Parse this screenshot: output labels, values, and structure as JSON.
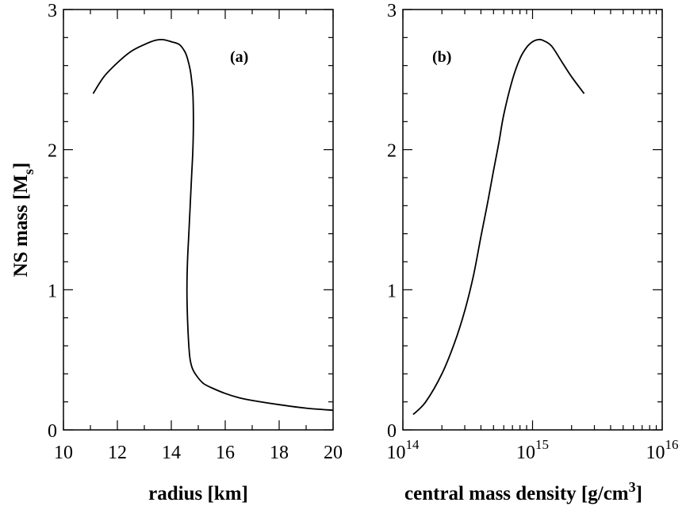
{
  "chart_data": [
    {
      "type": "line",
      "panel_label": "(a)",
      "xlabel": "radius [km]",
      "ylabel": "NS mass [M",
      "ylabel_sub": "s",
      "ylabel_close": "]",
      "xlim": [
        10,
        20
      ],
      "ylim": [
        0,
        3
      ],
      "x_scale": "linear",
      "xticks": [
        10,
        12,
        14,
        16,
        18,
        20
      ],
      "xtick_labels": [
        "10",
        "12",
        "14",
        "16",
        "18",
        "20"
      ],
      "yticks": [
        0,
        1,
        2,
        3
      ],
      "ytick_labels": [
        "0",
        "1",
        "2",
        "3"
      ],
      "grid": false,
      "series": [
        {
          "x": [
            20.0,
            19.0,
            18.0,
            17.0,
            16.5,
            16.0,
            15.5,
            15.2,
            15.0,
            14.8,
            14.7,
            14.65,
            14.6,
            14.58,
            14.6,
            14.65,
            14.7,
            14.75,
            14.8,
            14.82,
            14.8,
            14.75,
            14.7,
            14.6,
            14.5,
            14.3,
            14.0,
            13.7,
            13.4,
            13.0,
            12.5,
            12.0,
            11.5,
            11.1
          ],
          "y": [
            0.14,
            0.155,
            0.18,
            0.21,
            0.23,
            0.26,
            0.3,
            0.33,
            0.37,
            0.43,
            0.5,
            0.6,
            0.8,
            1.0,
            1.2,
            1.4,
            1.6,
            1.8,
            2.0,
            2.2,
            2.4,
            2.5,
            2.57,
            2.65,
            2.7,
            2.75,
            2.77,
            2.785,
            2.78,
            2.75,
            2.7,
            2.62,
            2.52,
            2.4
          ]
        }
      ]
    },
    {
      "type": "line",
      "panel_label": "(b)",
      "xlabel": "central mass density [g/cm",
      "xlabel_sup": "3",
      "xlabel_close": "]",
      "xlim": [
        100000000000000.0,
        1e+16
      ],
      "ylim": [
        0,
        3
      ],
      "x_scale": "log",
      "xticks": [
        100000000000000.0,
        1000000000000000.0,
        1e+16
      ],
      "xtick_bases": [
        "10",
        "10",
        "10"
      ],
      "xtick_exps": [
        "14",
        "15",
        "16"
      ],
      "yticks": [
        0,
        1,
        2,
        3
      ],
      "ytick_labels": [
        "0",
        "1",
        "2",
        "3"
      ],
      "grid": false,
      "series": [
        {
          "x": [
            120000000000000.0,
            150000000000000.0,
            200000000000000.0,
            250000000000000.0,
            300000000000000.0,
            350000000000000.0,
            400000000000000.0,
            450000000000000.0,
            500000000000000.0,
            550000000000000.0,
            600000000000000.0,
            700000000000000.0,
            800000000000000.0,
            900000000000000.0,
            1000000000000000.0,
            1100000000000000.0,
            1200000000000000.0,
            1400000000000000.0,
            1700000000000000.0,
            2000000000000000.0,
            2500000000000000.0
          ],
          "y": [
            0.11,
            0.2,
            0.4,
            0.62,
            0.85,
            1.1,
            1.38,
            1.62,
            1.85,
            2.05,
            2.25,
            2.5,
            2.65,
            2.73,
            2.77,
            2.785,
            2.78,
            2.74,
            2.62,
            2.52,
            2.4
          ]
        }
      ]
    }
  ]
}
